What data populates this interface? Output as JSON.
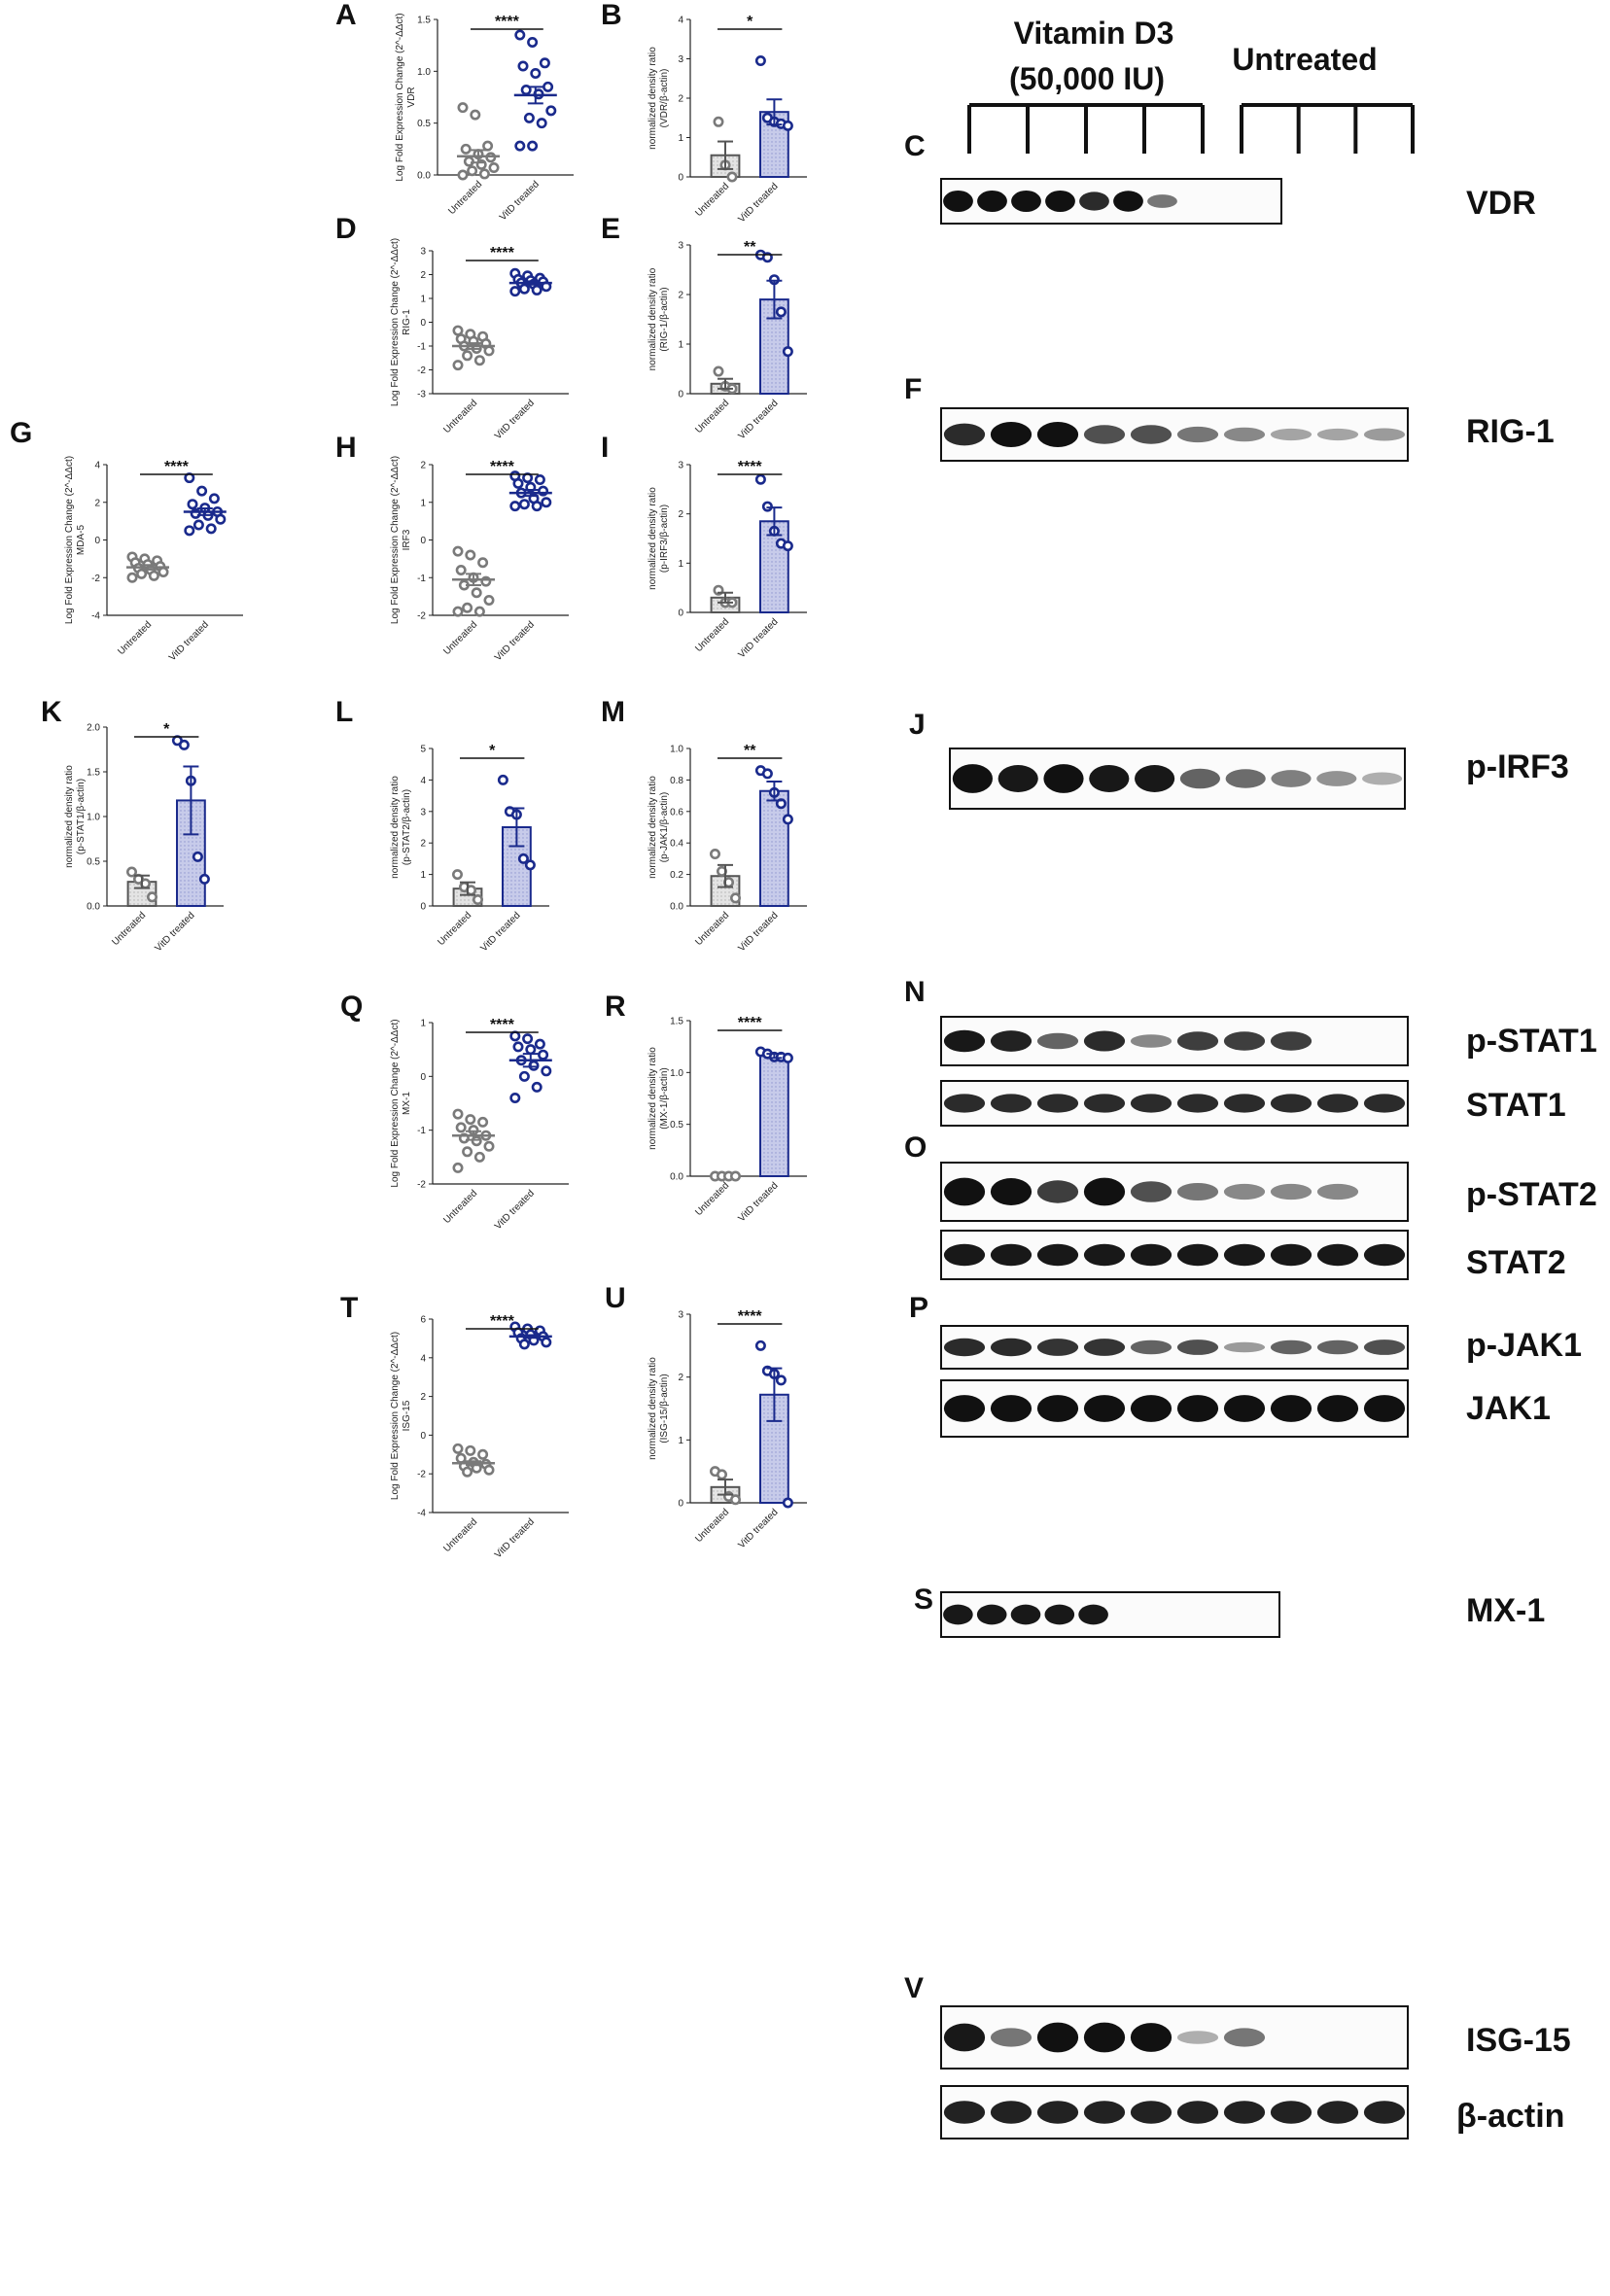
{
  "colors": {
    "untreated": "#7a7a7a",
    "treated": "#1a2a8c",
    "teal": "#1a6e9a",
    "bar_untreated_fill": "#e4e4e4",
    "bar_treated_fill": "#c7cbea"
  },
  "categories": [
    "Untreated",
    "VitD treated"
  ],
  "chart_data": [
    {
      "id": "A",
      "type": "scatter",
      "ylabel": "Log Fold Expression Change (2^-ΔΔct)",
      "ylabel2": "VDR",
      "ylim": [
        0,
        1.5
      ],
      "yticks": [
        0.0,
        0.5,
        1.0,
        1.5
      ],
      "sig": "****",
      "mean": [
        0.18,
        0.77
      ],
      "sem": [
        0.06,
        0.08
      ],
      "points": [
        [
          0.65,
          0.58,
          0.28,
          0.25,
          0.2,
          0.17,
          0.13,
          0.1,
          0.07,
          0.04,
          0.01,
          0.0
        ],
        [
          1.35,
          1.28,
          1.08,
          1.05,
          0.98,
          0.85,
          0.82,
          0.78,
          0.62,
          0.55,
          0.5,
          0.28,
          0.28
        ]
      ]
    },
    {
      "id": "B",
      "type": "bar",
      "ylabel": "normalized density ratio",
      "ylabel2": "(VDR/β-actin)",
      "ylim": [
        0,
        4
      ],
      "yticks": [
        0,
        1,
        2,
        3,
        4
      ],
      "sig": "*",
      "values": [
        0.55,
        1.65
      ],
      "sem": [
        0.35,
        0.32
      ],
      "points": [
        [
          1.4,
          0.3,
          0.0
        ],
        [
          2.95,
          1.5,
          1.4,
          1.35,
          1.3
        ]
      ]
    },
    {
      "id": "D",
      "type": "scatter",
      "ylabel": "Log Fold Expression Change (2^-ΔΔct)",
      "ylabel2": "RIG-1",
      "ylim": [
        -3,
        3
      ],
      "yticks": [
        -3,
        -2,
        -1,
        0,
        1,
        2,
        3
      ],
      "sig": "****",
      "mean": [
        -1.0,
        1.65
      ],
      "sem": [
        0.12,
        0.07
      ],
      "points": [
        [
          -0.35,
          -0.5,
          -0.6,
          -0.7,
          -0.8,
          -0.9,
          -1.0,
          -1.1,
          -1.2,
          -1.4,
          -1.6,
          -1.8
        ],
        [
          2.05,
          1.95,
          1.85,
          1.8,
          1.75,
          1.7,
          1.65,
          1.6,
          1.5,
          1.4,
          1.35,
          1.3
        ]
      ]
    },
    {
      "id": "E",
      "type": "bar",
      "ylabel": "normalized density ratio",
      "ylabel2": "(RIG-1/β-actin)",
      "ylim": [
        0,
        3
      ],
      "yticks": [
        0,
        1,
        2,
        3
      ],
      "sig": "**",
      "values": [
        0.2,
        1.9
      ],
      "sem": [
        0.1,
        0.38
      ],
      "points": [
        [
          0.45,
          0.15,
          0.1
        ],
        [
          2.8,
          2.75,
          2.3,
          1.65,
          0.85
        ]
      ]
    },
    {
      "id": "G",
      "type": "scatter",
      "ylabel": "Log Fold Expression Change (2^-ΔΔct)",
      "ylabel2": "MDA-5",
      "ylim": [
        -4,
        4
      ],
      "yticks": [
        -4,
        -2,
        0,
        2,
        4
      ],
      "sig": "****",
      "mean": [
        -1.45,
        1.5
      ],
      "sem": [
        0.12,
        0.18
      ],
      "points": [
        [
          -0.9,
          -1.0,
          -1.1,
          -1.2,
          -1.3,
          -1.4,
          -1.5,
          -1.6,
          -1.7,
          -1.8,
          -1.9,
          -2.0
        ],
        [
          3.3,
          2.6,
          2.2,
          1.9,
          1.7,
          1.5,
          1.4,
          1.3,
          1.1,
          0.8,
          0.6,
          0.5
        ]
      ]
    },
    {
      "id": "H",
      "type": "scatter",
      "ylabel": "Log Fold Expression Change (2^-ΔΔct)",
      "ylabel2": "IRF3",
      "ylim": [
        -2,
        2
      ],
      "yticks": [
        -2,
        -1,
        0,
        1,
        2
      ],
      "sig": "****",
      "mean": [
        -1.05,
        1.25
      ],
      "sem": [
        0.15,
        0.08
      ],
      "points": [
        [
          -0.3,
          -0.4,
          -0.6,
          -0.8,
          -1.0,
          -1.1,
          -1.2,
          -1.4,
          -1.6,
          -1.8,
          -1.9,
          -1.9
        ],
        [
          1.7,
          1.65,
          1.6,
          1.5,
          1.4,
          1.3,
          1.25,
          1.1,
          1.0,
          0.95,
          0.9,
          0.9
        ]
      ]
    },
    {
      "id": "I",
      "type": "bar",
      "ylabel": "normalized density ratio",
      "ylabel2": "(p-IRF3/β-actin)",
      "ylim": [
        0,
        3
      ],
      "yticks": [
        0,
        1,
        2,
        3
      ],
      "sig": "****",
      "values": [
        0.3,
        1.85
      ],
      "sem": [
        0.1,
        0.28
      ],
      "points": [
        [
          0.45,
          0.2,
          0.2
        ],
        [
          2.7,
          2.15,
          1.65,
          1.4,
          1.35
        ]
      ]
    },
    {
      "id": "K",
      "type": "bar",
      "ylabel": "normalized density ratio",
      "ylabel2": "(p-STAT1/β-actin)",
      "ylim": [
        0,
        2.0
      ],
      "yticks": [
        0.0,
        0.5,
        1.0,
        1.5,
        2.0
      ],
      "sig": "*",
      "values": [
        0.27,
        1.18
      ],
      "sem": [
        0.07,
        0.38
      ],
      "points": [
        [
          0.38,
          0.3,
          0.25,
          0.1
        ],
        [
          1.85,
          1.8,
          1.4,
          0.55,
          0.3
        ]
      ]
    },
    {
      "id": "L",
      "type": "bar",
      "ylabel": "normalized density ratio",
      "ylabel2": "(p-STAT2/β-actin)",
      "ylim": [
        0,
        5
      ],
      "yticks": [
        0,
        1,
        2,
        3,
        4,
        5
      ],
      "sig": "*",
      "values": [
        0.55,
        2.5
      ],
      "sem": [
        0.2,
        0.6
      ],
      "points": [
        [
          1.0,
          0.6,
          0.5,
          0.2
        ],
        [
          4.0,
          3.0,
          2.9,
          1.5,
          1.3
        ]
      ]
    },
    {
      "id": "M",
      "type": "bar",
      "ylabel": "normalized density ratio",
      "ylabel2": "(p-JAK1/β-actin)",
      "ylim": [
        0,
        1.0
      ],
      "yticks": [
        0.0,
        0.2,
        0.4,
        0.6,
        0.8,
        1.0
      ],
      "sig": "**",
      "values": [
        0.19,
        0.73
      ],
      "sem": [
        0.07,
        0.06
      ],
      "points": [
        [
          0.33,
          0.22,
          0.15,
          0.05
        ],
        [
          0.86,
          0.84,
          0.72,
          0.65,
          0.55
        ]
      ]
    },
    {
      "id": "Q",
      "type": "scatter",
      "ylabel": "Log Fold Expression Change (2^-ΔΔct)",
      "ylabel2": "MX-1",
      "ylim": [
        -2,
        1
      ],
      "yticks": [
        -2,
        -1,
        0,
        1
      ],
      "sig": "****",
      "mean": [
        -1.1,
        0.3
      ],
      "sem": [
        0.08,
        0.12
      ],
      "points": [
        [
          -0.7,
          -0.8,
          -0.85,
          -0.95,
          -1.0,
          -1.1,
          -1.15,
          -1.2,
          -1.3,
          -1.4,
          -1.5,
          -1.7
        ],
        [
          0.75,
          0.7,
          0.6,
          0.55,
          0.5,
          0.4,
          0.3,
          0.2,
          0.1,
          0.0,
          -0.2,
          -0.4
        ]
      ]
    },
    {
      "id": "R",
      "type": "bar",
      "ylabel": "normalized density ratio",
      "ylabel2": "(MX-1/β-actin)",
      "ylim": [
        0,
        1.5
      ],
      "yticks": [
        0.0,
        0.5,
        1.0,
        1.5
      ],
      "sig": "****",
      "values": [
        0.0,
        1.16
      ],
      "sem": [
        0.0,
        0.02
      ],
      "points": [
        [
          0.0,
          0.0,
          0.0,
          0.0
        ],
        [
          1.2,
          1.18,
          1.15,
          1.15,
          1.14
        ]
      ]
    },
    {
      "id": "T",
      "type": "scatter",
      "ylabel": "Log Fold Expression Change (2^-ΔΔct)",
      "ylabel2": "ISG-15",
      "ylim": [
        -4,
        6
      ],
      "yticks": [
        -4,
        -2,
        0,
        2,
        4,
        6
      ],
      "sig": "****",
      "mean": [
        -1.45,
        5.1
      ],
      "sem": [
        0.1,
        0.07
      ],
      "points": [
        [
          -0.7,
          -0.8,
          -1.0,
          -1.2,
          -1.4,
          -1.5,
          -1.6,
          -1.7,
          -1.8,
          -1.9
        ],
        [
          5.6,
          5.5,
          5.4,
          5.3,
          5.2,
          5.1,
          5.0,
          4.9,
          4.8,
          4.7
        ]
      ]
    },
    {
      "id": "U",
      "type": "bar",
      "ylabel": "normalized density ratio",
      "ylabel2": "(ISG-15/β-actin)",
      "ylim": [
        0,
        3
      ],
      "yticks": [
        0,
        1,
        2,
        3
      ],
      "sig": "****",
      "values": [
        0.25,
        1.72
      ],
      "sem": [
        0.12,
        0.42
      ],
      "points": [
        [
          0.5,
          0.45,
          0.1,
          0.05
        ],
        [
          2.5,
          2.1,
          2.05,
          1.95,
          0.0
        ]
      ]
    }
  ],
  "blots": [
    {
      "id": "C",
      "label": "VDR",
      "bands": [
        1,
        1,
        1,
        1,
        0.8,
        0.95,
        0.4,
        0,
        0,
        0
      ]
    },
    {
      "id": "F",
      "label": "RIG-1",
      "bands": [
        0.8,
        1,
        1,
        0.6,
        0.6,
        0.4,
        0.3,
        0.15,
        0.15,
        0.2
      ]
    },
    {
      "id": "J",
      "label": "p-IRF3",
      "bands": [
        1,
        0.9,
        1,
        0.9,
        0.9,
        0.5,
        0.45,
        0.35,
        0.25,
        0.1
      ]
    },
    {
      "id": "N",
      "label": "p-STAT1",
      "bands": [
        0.9,
        0.85,
        0.5,
        0.8,
        0.3,
        0.7,
        0.7,
        0.7,
        0,
        0
      ]
    },
    {
      "id": "",
      "label": "STAT1",
      "bands": [
        0.8,
        0.8,
        0.8,
        0.8,
        0.8,
        0.8,
        0.8,
        0.8,
        0.8,
        0.8
      ]
    },
    {
      "id": "O",
      "label": "p-STAT2",
      "bands": [
        1,
        0.95,
        0.7,
        1,
        0.6,
        0.4,
        0.3,
        0.3,
        0.3,
        0
      ]
    },
    {
      "id": "",
      "label": "STAT2",
      "bands": [
        0.9,
        0.9,
        0.9,
        0.9,
        0.9,
        0.9,
        0.9,
        0.9,
        0.9,
        0.9
      ]
    },
    {
      "id": "P",
      "label": "p-JAK1",
      "bands": [
        0.8,
        0.8,
        0.75,
        0.75,
        0.5,
        0.6,
        0.2,
        0.5,
        0.5,
        0.6
      ]
    },
    {
      "id": "",
      "label": "JAK1",
      "bands": [
        1,
        1,
        1,
        1,
        1,
        1,
        1,
        1,
        1,
        1
      ]
    },
    {
      "id": "S",
      "label": "MX-1",
      "bands": [
        0.9,
        0.9,
        0.9,
        0.9,
        0.9,
        0,
        0,
        0,
        0,
        0
      ]
    },
    {
      "id": "V",
      "label": "ISG-15",
      "bands": [
        0.9,
        0.4,
        1,
        1,
        0.95,
        0.1,
        0.4,
        0,
        0,
        0
      ]
    },
    {
      "id": "",
      "label": "β-actin",
      "bands": [
        0.85,
        0.85,
        0.85,
        0.85,
        0.85,
        0.85,
        0.85,
        0.85,
        0.85,
        0.85
      ]
    }
  ],
  "groups": {
    "treated": "Vitamin D3",
    "treated_dose": "(50,000 IU)",
    "untreated": "Untreated"
  }
}
